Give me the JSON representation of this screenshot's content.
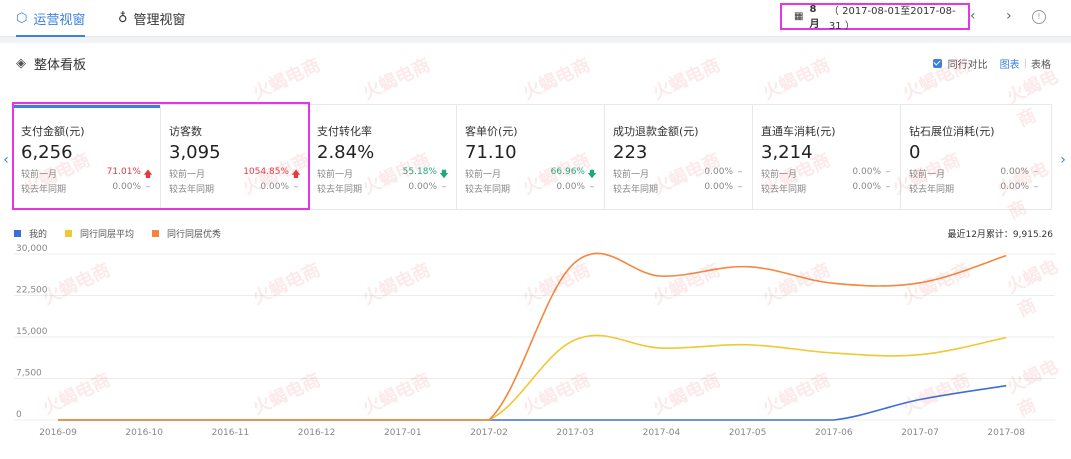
{
  "topbar": {
    "tabs": [
      {
        "label": "运营视窗",
        "active": true
      },
      {
        "label": "管理视窗",
        "active": false
      }
    ],
    "date_month": "8月",
    "date_range": "（ 2017-08-01至2017-08-31 ）"
  },
  "board": {
    "title": "整体看板",
    "peer_compare_label": "同行对比",
    "view_chart": "图表",
    "view_table": "表格"
  },
  "metrics": [
    {
      "title": "支付金额(元)",
      "value": "6,256",
      "mom_label": "较前一月",
      "mom_pct": "71.01%",
      "mom_dir": "up",
      "yoy_label": "较去年同期",
      "yoy_pct": "0.00%",
      "yoy_dir": "flat"
    },
    {
      "title": "访客数",
      "value": "3,095",
      "mom_label": "较前一月",
      "mom_pct": "1054.85%",
      "mom_dir": "up",
      "yoy_label": "较去年同期",
      "yoy_pct": "0.00%",
      "yoy_dir": "flat"
    },
    {
      "title": "支付转化率",
      "value": "2.84%",
      "mom_label": "较前一月",
      "mom_pct": "55.18%",
      "mom_dir": "down",
      "yoy_label": "较去年同期",
      "yoy_pct": "0.00%",
      "yoy_dir": "flat"
    },
    {
      "title": "客单价(元)",
      "value": "71.10",
      "mom_label": "较前一月",
      "mom_pct": "66.96%",
      "mom_dir": "down",
      "yoy_label": "较去年同期",
      "yoy_pct": "0.00%",
      "yoy_dir": "flat"
    },
    {
      "title": "成功退款金额(元)",
      "value": "223",
      "mom_label": "较前一月",
      "mom_pct": "0.00%",
      "mom_dir": "flat",
      "yoy_label": "较去年同期",
      "yoy_pct": "0.00%",
      "yoy_dir": "flat"
    },
    {
      "title": "直通车消耗(元)",
      "value": "3,214",
      "mom_label": "较前一月",
      "mom_pct": "0.00%",
      "mom_dir": "flat",
      "yoy_label": "较去年同期",
      "yoy_pct": "0.00%",
      "yoy_dir": "flat"
    },
    {
      "title": "钻石展位消耗(元)",
      "value": "0",
      "mom_label": "较前一月",
      "mom_pct": "0.00%",
      "mom_dir": "flat",
      "yoy_label": "较去年同期",
      "yoy_pct": "0.00%",
      "yoy_dir": "flat"
    }
  ],
  "arrows": {
    "up": "🡅",
    "down": "🡇",
    "flat": "–"
  },
  "total_text": "最近12月累计：9,915.26",
  "watermark_text": "火蝎电商",
  "chart_data": {
    "type": "line",
    "x": [
      "2016-09",
      "2016-10",
      "2016-11",
      "2016-12",
      "2017-01",
      "2017-02",
      "2017-03",
      "2017-04",
      "2017-05",
      "2017-06",
      "2017-07",
      "2017-08"
    ],
    "yticks": [
      "30,000",
      "22,500",
      "15,000",
      "7,500",
      "0"
    ],
    "ylim": [
      0,
      30000
    ],
    "series": [
      {
        "name": "我的",
        "color": "#3b6fd8",
        "values": [
          0,
          0,
          0,
          0,
          0,
          0,
          0,
          0,
          0,
          0,
          3700,
          6200
        ]
      },
      {
        "name": "同行同层平均",
        "color": "#f0c832",
        "values": [
          0,
          0,
          0,
          0,
          0,
          0,
          14500,
          13000,
          13600,
          12100,
          11800,
          14900
        ]
      },
      {
        "name": "同行同层优秀",
        "color": "#f5863d",
        "values": [
          0,
          0,
          0,
          0,
          0,
          0,
          28500,
          26000,
          27700,
          24700,
          24800,
          29700
        ]
      }
    ]
  }
}
